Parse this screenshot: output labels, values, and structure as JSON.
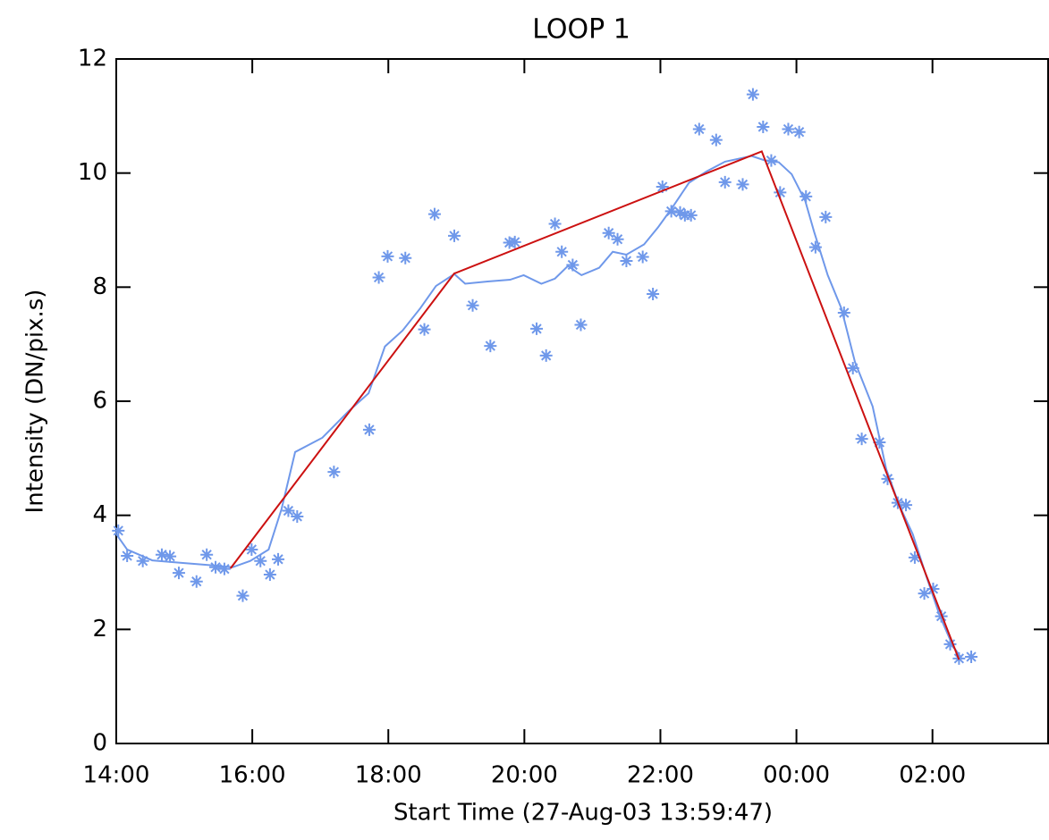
{
  "chart_data": {
    "type": "line",
    "title": "LOOP 1",
    "x_label": "Start Time (27-Aug-03 13:59:47)",
    "y_label": "Intensity (DN/pix.s)",
    "xlim": [
      14,
      27.7
    ],
    "xticks": [
      {
        "value": 14,
        "label": "14:00"
      },
      {
        "value": 16,
        "label": "16:00"
      },
      {
        "value": 18,
        "label": "18:00"
      },
      {
        "value": 20,
        "label": "20:00"
      },
      {
        "value": 22,
        "label": "22:00"
      },
      {
        "value": 24,
        "label": "00:00"
      },
      {
        "value": 26,
        "label": "02:00"
      }
    ],
    "ylim": [
      0,
      12
    ],
    "yticks": [
      0,
      2,
      4,
      6,
      8,
      10,
      12
    ],
    "series": [
      {
        "mode": "markers",
        "color": "#6f98ea",
        "x": [
          14.03,
          14.16,
          14.39,
          14.67,
          14.79,
          14.92,
          15.18,
          15.33,
          15.46,
          15.59,
          15.86,
          15.99,
          16.12,
          16.26,
          16.38,
          16.53,
          16.66,
          17.2,
          17.72,
          17.86,
          17.99,
          18.25,
          18.53,
          18.68,
          18.97,
          19.24,
          19.5,
          19.78,
          19.86,
          20.18,
          20.32,
          20.45,
          20.55,
          20.71,
          20.83,
          21.24,
          21.37,
          21.5,
          21.74,
          21.89,
          22.03,
          22.16,
          22.29,
          22.36,
          22.45,
          22.57,
          22.82,
          22.95,
          23.21,
          23.36,
          23.51,
          23.63,
          23.76,
          23.88,
          24.04,
          24.14,
          24.28,
          24.43,
          24.7,
          24.83,
          24.96,
          25.22,
          25.34,
          25.49,
          25.61,
          25.74,
          25.88,
          26.01,
          26.13,
          26.26,
          26.39,
          26.57
        ],
        "values": [
          3.73,
          3.29,
          3.2,
          3.31,
          3.28,
          2.99,
          2.84,
          3.31,
          3.09,
          3.06,
          2.59,
          3.4,
          3.2,
          2.96,
          3.23,
          4.08,
          3.98,
          4.76,
          5.5,
          8.17,
          8.54,
          8.51,
          7.26,
          9.28,
          8.9,
          7.68,
          6.97,
          8.78,
          8.79,
          7.27,
          6.8,
          9.11,
          8.62,
          8.39,
          7.34,
          8.95,
          8.84,
          8.46,
          8.53,
          7.88,
          9.76,
          9.33,
          9.31,
          9.26,
          9.26,
          10.77,
          10.58,
          9.84,
          9.8,
          11.38,
          10.81,
          10.22,
          9.66,
          10.77,
          10.72,
          9.59,
          8.7,
          9.23,
          7.55,
          6.58,
          5.34,
          5.28,
          4.64,
          4.22,
          4.18,
          3.26,
          2.63,
          2.71,
          2.23,
          1.74,
          1.49,
          1.52
        ]
      },
      {
        "mode": "line",
        "color": "#6f98ea",
        "x": [
          14,
          14.16,
          14.53,
          14.92,
          15.45,
          15.71,
          15.97,
          16.24,
          16.43,
          16.63,
          17.03,
          17.42,
          17.71,
          17.95,
          18.21,
          18.47,
          18.7,
          18.97,
          19.13,
          19.46,
          19.79,
          19.99,
          20.25,
          20.45,
          20.64,
          20.84,
          21.1,
          21.3,
          21.5,
          21.76,
          21.96,
          22.16,
          22.42,
          22.68,
          22.95,
          23.34,
          23.54,
          23.74,
          23.93,
          24.13,
          24.26,
          24.46,
          24.66,
          24.86,
          25.12,
          25.32,
          25.51,
          25.71,
          25.91,
          26.11,
          26.3,
          26.43
        ],
        "values": [
          3.67,
          3.4,
          3.21,
          3.17,
          3.12,
          3.09,
          3.2,
          3.4,
          4.11,
          5.11,
          5.36,
          5.83,
          6.14,
          6.96,
          7.24,
          7.63,
          8.02,
          8.23,
          8.06,
          8.1,
          8.13,
          8.21,
          8.06,
          8.15,
          8.37,
          8.21,
          8.34,
          8.62,
          8.57,
          8.75,
          9.04,
          9.37,
          9.83,
          10.03,
          10.2,
          10.3,
          10.22,
          10.19,
          9.98,
          9.51,
          8.97,
          8.21,
          7.63,
          6.69,
          5.91,
          4.81,
          4.18,
          3.67,
          2.93,
          2.23,
          1.71,
          1.49
        ]
      },
      {
        "mode": "line",
        "color": "#cc1111",
        "x": [
          15.68,
          18.97,
          23.49,
          26.39
        ],
        "values": [
          3.07,
          8.24,
          10.38,
          1.47
        ]
      }
    ]
  }
}
